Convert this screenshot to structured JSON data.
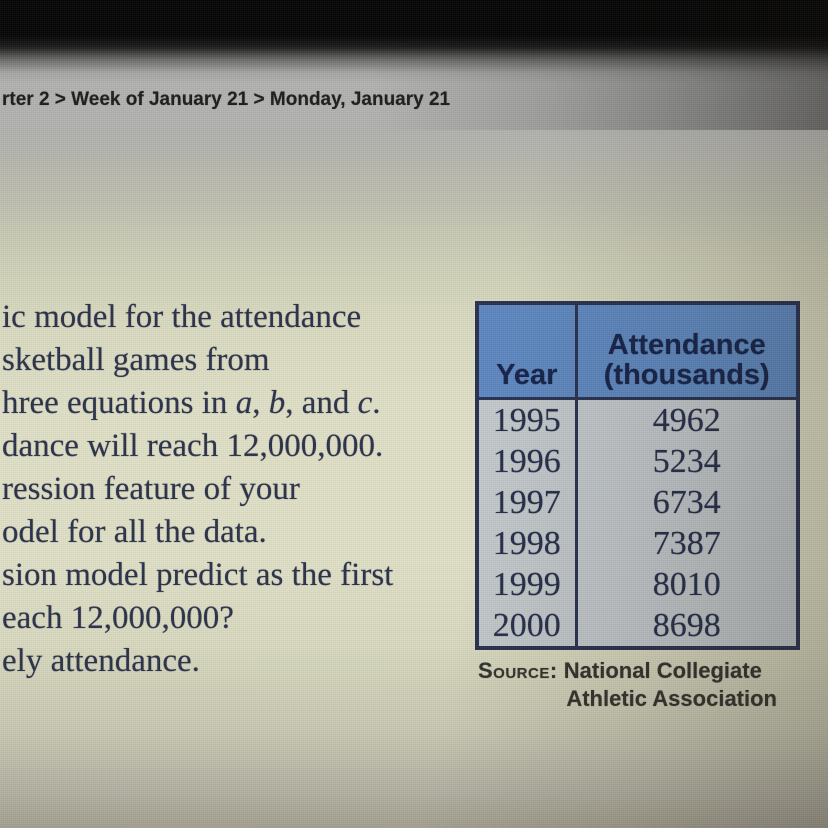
{
  "breadcrumb": {
    "text": "rter 2 > Week of January 21 > Monday, January 21"
  },
  "problem": {
    "lines": [
      [
        {
          "t": "ic model for the attendance"
        }
      ],
      [
        {
          "t": "sketball games from"
        }
      ],
      [
        {
          "t": "hree equations in "
        },
        {
          "t": "a",
          "i": true
        },
        {
          "t": ", "
        },
        {
          "t": "b",
          "i": true
        },
        {
          "t": ", and "
        },
        {
          "t": "c",
          "i": true
        },
        {
          "t": "."
        }
      ],
      [
        {
          "t": "dance will reach 12,000,000."
        }
      ],
      [
        {
          "t": "ression feature of your"
        }
      ],
      [
        {
          "t": "odel for all the data."
        }
      ],
      [
        {
          "t": "sion model predict as the first"
        }
      ],
      [
        {
          "t": "each 12,000,000?"
        }
      ],
      [
        {
          "t": "ely attendance."
        }
      ]
    ]
  },
  "table": {
    "col1_header": "Year",
    "col2_header_line1": "Attendance",
    "col2_header_line2": "(thousands)",
    "rows": [
      {
        "year": "1995",
        "attendance": "4962"
      },
      {
        "year": "1996",
        "attendance": "5234"
      },
      {
        "year": "1997",
        "attendance": "6734"
      },
      {
        "year": "1998",
        "attendance": "7387"
      },
      {
        "year": "1999",
        "attendance": "8010"
      },
      {
        "year": "2000",
        "attendance": "8698"
      }
    ]
  },
  "source": {
    "label": "Source:",
    "line1": "National Collegiate",
    "line2": "Athletic Association"
  },
  "colors": {
    "table_header_bg": "#5e88c0",
    "table_body_bg": "#c3c8cb",
    "table_border": "#28304f",
    "table_header_text": "#152248",
    "table_body_text": "#242d49",
    "page_cream": "#dfe0c6",
    "top_bar_black": "#060606",
    "menu_strip_gray": "#b2b2b0",
    "text_ink": "#2b3149",
    "source_ink": "#32312b",
    "breadcrumb_ink": "#1d1d1d"
  }
}
